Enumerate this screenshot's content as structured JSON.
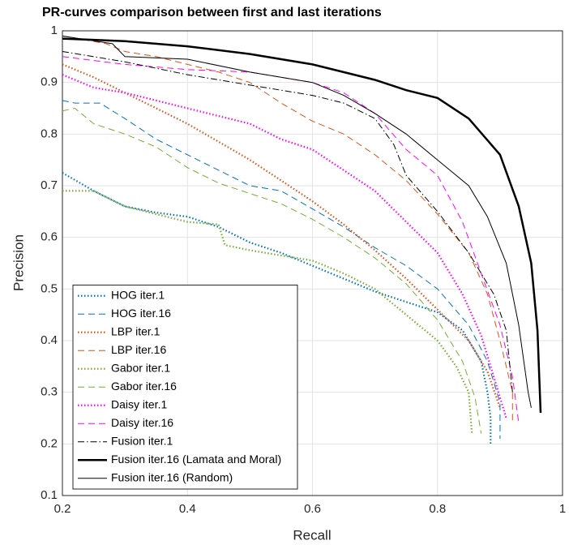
{
  "chart_data": {
    "type": "line",
    "title": "PR-curves comparison between first and last iterations",
    "xlabel": "Recall",
    "ylabel": "Precision",
    "xlim": [
      0.2,
      1
    ],
    "ylim": [
      0.1,
      1
    ],
    "xticks": [
      0.2,
      0.4,
      0.6,
      0.8,
      1
    ],
    "yticks": [
      0.1,
      0.2,
      0.3,
      0.4,
      0.5,
      0.6,
      0.7,
      0.8,
      0.9,
      1
    ],
    "grid": true,
    "legend": "lower left",
    "series": [
      {
        "name": "HOG iter.1",
        "color": "#0072bd",
        "line_style": "dotted",
        "line_width": 2.2,
        "x": [
          0.2,
          0.25,
          0.3,
          0.35,
          0.4,
          0.45,
          0.5,
          0.55,
          0.6,
          0.65,
          0.7,
          0.75,
          0.8,
          0.84,
          0.87,
          0.88,
          0.885,
          0.885
        ],
        "values": [
          0.725,
          0.69,
          0.66,
          0.648,
          0.64,
          0.62,
          0.59,
          0.57,
          0.545,
          0.52,
          0.495,
          0.475,
          0.455,
          0.42,
          0.36,
          0.3,
          0.25,
          0.2
        ]
      },
      {
        "name": "HOG iter.16",
        "color": "#0072bd",
        "line_style": "dashed",
        "line_width": 1,
        "x": [
          0.2,
          0.22,
          0.26,
          0.3,
          0.35,
          0.4,
          0.45,
          0.5,
          0.55,
          0.6,
          0.65,
          0.7,
          0.75,
          0.8,
          0.85,
          0.88,
          0.9,
          0.9
        ],
        "values": [
          0.865,
          0.86,
          0.86,
          0.83,
          0.79,
          0.76,
          0.73,
          0.7,
          0.69,
          0.655,
          0.62,
          0.58,
          0.545,
          0.5,
          0.43,
          0.36,
          0.28,
          0.21
        ]
      },
      {
        "name": "LBP iter.1",
        "color": "#d95319",
        "line_style": "dotted",
        "line_width": 2.2,
        "x": [
          0.2,
          0.25,
          0.3,
          0.35,
          0.4,
          0.45,
          0.5,
          0.55,
          0.6,
          0.65,
          0.7,
          0.75,
          0.8,
          0.85,
          0.88,
          0.9
        ],
        "values": [
          0.935,
          0.91,
          0.88,
          0.85,
          0.82,
          0.785,
          0.75,
          0.71,
          0.67,
          0.625,
          0.575,
          0.52,
          0.46,
          0.4,
          0.34,
          0.27
        ]
      },
      {
        "name": "LBP iter.16",
        "color": "#d95319",
        "line_style": "dashed",
        "line_width": 1,
        "x": [
          0.2,
          0.27,
          0.3,
          0.35,
          0.4,
          0.45,
          0.5,
          0.55,
          0.6,
          0.65,
          0.7,
          0.75,
          0.8,
          0.85,
          0.88,
          0.9,
          0.92,
          0.92
        ],
        "values": [
          0.99,
          0.975,
          0.96,
          0.95,
          0.935,
          0.92,
          0.9,
          0.86,
          0.825,
          0.8,
          0.76,
          0.71,
          0.645,
          0.57,
          0.49,
          0.4,
          0.3,
          0.24
        ]
      },
      {
        "name": "Gabor iter.1",
        "color": "#77ac30",
        "line_style": "dotted",
        "line_width": 2.2,
        "x": [
          0.2,
          0.25,
          0.3,
          0.35,
          0.4,
          0.45,
          0.46,
          0.5,
          0.55,
          0.6,
          0.65,
          0.7,
          0.75,
          0.8,
          0.83,
          0.85,
          0.855
        ],
        "values": [
          0.69,
          0.69,
          0.66,
          0.645,
          0.63,
          0.625,
          0.585,
          0.575,
          0.565,
          0.555,
          0.53,
          0.5,
          0.45,
          0.4,
          0.35,
          0.3,
          0.22
        ]
      },
      {
        "name": "Gabor iter.16",
        "color": "#77ac30",
        "line_style": "dashed",
        "line_width": 1,
        "x": [
          0.2,
          0.22,
          0.25,
          0.3,
          0.35,
          0.4,
          0.45,
          0.5,
          0.55,
          0.6,
          0.65,
          0.7,
          0.75,
          0.8,
          0.84,
          0.86,
          0.87
        ],
        "values": [
          0.845,
          0.85,
          0.82,
          0.8,
          0.775,
          0.735,
          0.705,
          0.685,
          0.665,
          0.635,
          0.6,
          0.56,
          0.51,
          0.44,
          0.36,
          0.29,
          0.22
        ]
      },
      {
        "name": "Daisy iter.1",
        "color": "#ff00ff",
        "line_style": "dotted",
        "line_width": 2.2,
        "x": [
          0.2,
          0.25,
          0.3,
          0.35,
          0.4,
          0.45,
          0.5,
          0.55,
          0.6,
          0.65,
          0.7,
          0.75,
          0.8,
          0.84,
          0.87,
          0.89,
          0.91
        ],
        "values": [
          0.915,
          0.89,
          0.88,
          0.865,
          0.85,
          0.835,
          0.82,
          0.79,
          0.77,
          0.73,
          0.69,
          0.63,
          0.57,
          0.49,
          0.41,
          0.33,
          0.25
        ]
      },
      {
        "name": "Daisy iter.16",
        "color": "#ff00ff",
        "line_style": "dashed",
        "line_width": 1,
        "x": [
          0.2,
          0.3,
          0.4,
          0.5,
          0.55,
          0.6,
          0.65,
          0.7,
          0.75,
          0.8,
          0.84,
          0.87,
          0.9,
          0.92,
          0.93
        ],
        "values": [
          0.95,
          0.935,
          0.925,
          0.92,
          0.91,
          0.9,
          0.88,
          0.84,
          0.77,
          0.72,
          0.63,
          0.53,
          0.43,
          0.33,
          0.24
        ]
      },
      {
        "name": "Fusion iter.1",
        "color": "#000000",
        "line_style": "dashdot",
        "line_width": 1,
        "x": [
          0.2,
          0.3,
          0.4,
          0.5,
          0.6,
          0.65,
          0.7,
          0.73,
          0.75,
          0.8,
          0.85,
          0.89,
          0.91,
          0.92
        ],
        "values": [
          0.96,
          0.94,
          0.915,
          0.895,
          0.875,
          0.86,
          0.83,
          0.78,
          0.72,
          0.65,
          0.57,
          0.49,
          0.42,
          0.3
        ]
      },
      {
        "name": "Fusion iter.16 (Lamata and Moral)",
        "color": "#000000",
        "line_style": "solid",
        "line_width": 2.5,
        "x": [
          0.2,
          0.3,
          0.4,
          0.5,
          0.6,
          0.7,
          0.75,
          0.8,
          0.85,
          0.9,
          0.93,
          0.95,
          0.96,
          0.965
        ],
        "values": [
          0.985,
          0.98,
          0.97,
          0.955,
          0.935,
          0.905,
          0.885,
          0.87,
          0.83,
          0.76,
          0.66,
          0.55,
          0.42,
          0.26
        ]
      },
      {
        "name": "Fusion iter.16 (Random)",
        "color": "#000000",
        "line_style": "solid",
        "line_width": 1,
        "x": [
          0.2,
          0.28,
          0.3,
          0.4,
          0.5,
          0.6,
          0.65,
          0.7,
          0.75,
          0.8,
          0.85,
          0.88,
          0.91,
          0.93,
          0.945,
          0.95
        ],
        "values": [
          0.99,
          0.975,
          0.95,
          0.945,
          0.92,
          0.9,
          0.875,
          0.84,
          0.8,
          0.75,
          0.7,
          0.64,
          0.55,
          0.43,
          0.3,
          0.27
        ]
      }
    ]
  }
}
